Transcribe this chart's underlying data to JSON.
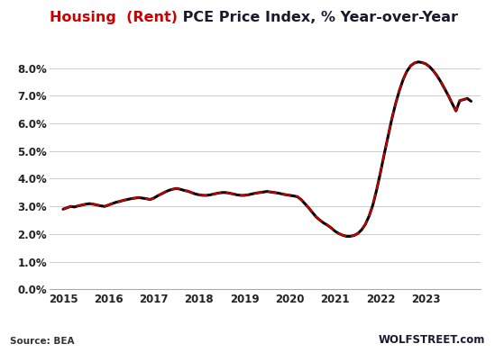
{
  "title_part1": "Housing  (Rent)",
  "title_part2": " PCE Price Index, % Year-over-Year",
  "title_color1": "#cc0000",
  "title_color2": "#1a1a2e",
  "source_text": "Source: BEA",
  "watermark": "WOLFSTREET.com",
  "ylim": [
    0.0,
    0.088
  ],
  "yticks": [
    0.0,
    0.01,
    0.02,
    0.03,
    0.04,
    0.05,
    0.06,
    0.07,
    0.08
  ],
  "ytick_labels": [
    "0.0%",
    "1.0%",
    "2.0%",
    "3.0%",
    "4.0%",
    "5.0%",
    "6.0%",
    "7.0%",
    "8.0%"
  ],
  "xlim_start": 2014.7,
  "xlim_end": 2024.2,
  "xticks": [
    2015,
    2016,
    2017,
    2018,
    2019,
    2020,
    2021,
    2022,
    2023
  ],
  "line_color_red": "#cc0000",
  "line_color_black": "#000000",
  "background_color": "#ffffff",
  "data": {
    "dates": [
      2015.0,
      2015.083,
      2015.167,
      2015.25,
      2015.333,
      2015.417,
      2015.5,
      2015.583,
      2015.667,
      2015.75,
      2015.833,
      2015.917,
      2016.0,
      2016.083,
      2016.167,
      2016.25,
      2016.333,
      2016.417,
      2016.5,
      2016.583,
      2016.667,
      2016.75,
      2016.833,
      2016.917,
      2017.0,
      2017.083,
      2017.167,
      2017.25,
      2017.333,
      2017.417,
      2017.5,
      2017.583,
      2017.667,
      2017.75,
      2017.833,
      2017.917,
      2018.0,
      2018.083,
      2018.167,
      2018.25,
      2018.333,
      2018.417,
      2018.5,
      2018.583,
      2018.667,
      2018.75,
      2018.833,
      2018.917,
      2019.0,
      2019.083,
      2019.167,
      2019.25,
      2019.333,
      2019.417,
      2019.5,
      2019.583,
      2019.667,
      2019.75,
      2019.833,
      2019.917,
      2020.0,
      2020.083,
      2020.167,
      2020.25,
      2020.333,
      2020.417,
      2020.5,
      2020.583,
      2020.667,
      2020.75,
      2020.833,
      2020.917,
      2021.0,
      2021.083,
      2021.167,
      2021.25,
      2021.333,
      2021.417,
      2021.5,
      2021.583,
      2021.667,
      2021.75,
      2021.833,
      2021.917,
      2022.0,
      2022.083,
      2022.167,
      2022.25,
      2022.333,
      2022.417,
      2022.5,
      2022.583,
      2022.667,
      2022.75,
      2022.833,
      2022.917,
      2023.0,
      2023.083,
      2023.167,
      2023.25,
      2023.333,
      2023.417,
      2023.5,
      2023.583,
      2023.667,
      2023.75,
      2023.917,
      2024.0
    ],
    "values": [
      0.029,
      0.0295,
      0.03,
      0.0298,
      0.0302,
      0.0305,
      0.0308,
      0.031,
      0.0308,
      0.0305,
      0.0302,
      0.03,
      0.0305,
      0.031,
      0.0315,
      0.0318,
      0.0322,
      0.0325,
      0.0328,
      0.033,
      0.0332,
      0.033,
      0.0328,
      0.0325,
      0.033,
      0.0338,
      0.0345,
      0.0352,
      0.0358,
      0.0362,
      0.0365,
      0.0362,
      0.0358,
      0.0355,
      0.035,
      0.0345,
      0.0342,
      0.034,
      0.034,
      0.0342,
      0.0345,
      0.0348,
      0.035,
      0.035,
      0.0348,
      0.0345,
      0.0342,
      0.034,
      0.034,
      0.0342,
      0.0345,
      0.0348,
      0.035,
      0.0352,
      0.0354,
      0.0352,
      0.035,
      0.0348,
      0.0345,
      0.0342,
      0.034,
      0.0338,
      0.0335,
      0.0325,
      0.031,
      0.0295,
      0.0278,
      0.0262,
      0.025,
      0.024,
      0.0232,
      0.0222,
      0.021,
      0.0202,
      0.0196,
      0.0192,
      0.0192,
      0.0195,
      0.0202,
      0.0215,
      0.0235,
      0.0265,
      0.0305,
      0.036,
      0.0422,
      0.0488,
      0.0552,
      0.0615,
      0.067,
      0.0718,
      0.0758,
      0.0788,
      0.0808,
      0.0818,
      0.0822,
      0.082,
      0.0815,
      0.0805,
      0.079,
      0.0772,
      0.075,
      0.0725,
      0.07,
      0.0672,
      0.0645,
      0.0682,
      0.069,
      0.068
    ]
  }
}
